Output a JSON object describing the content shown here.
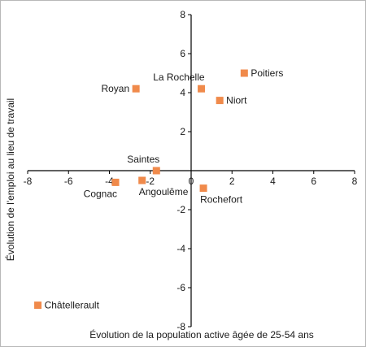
{
  "chart_data": {
    "type": "scatter",
    "xlabel": "Évolution de la population active âgée de 25-54 ans",
    "ylabel": "Évolution de l'emploi au lieu de travail",
    "xlim": [
      -8,
      8
    ],
    "ylim": [
      -8,
      8
    ],
    "x_ticks": [
      -8,
      -6,
      -4,
      -2,
      0,
      2,
      4,
      6,
      8
    ],
    "y_ticks": [
      -8,
      -6,
      -4,
      -2,
      2,
      4,
      6,
      8
    ],
    "grid": false,
    "marker_color": "#f08a4b",
    "points": [
      {
        "label": "Poitiers",
        "x": 2.6,
        "y": 5.0,
        "label_pos": "right"
      },
      {
        "label": "La Rochelle",
        "x": 0.5,
        "y": 4.2,
        "label_pos": "above-left"
      },
      {
        "label": "Royan",
        "x": -2.7,
        "y": 4.2,
        "label_pos": "left"
      },
      {
        "label": "Niort",
        "x": 1.4,
        "y": 3.6,
        "label_pos": "right"
      },
      {
        "label": "Saintes",
        "x": -1.7,
        "y": 0.0,
        "label_pos": "above-left"
      },
      {
        "label": "Angoulême",
        "x": -2.4,
        "y": -0.5,
        "label_pos": "below-right"
      },
      {
        "label": "Cognac",
        "x": -3.7,
        "y": -0.6,
        "label_pos": "below-left"
      },
      {
        "label": "Rochefort",
        "x": 0.6,
        "y": -0.9,
        "label_pos": "below-right"
      },
      {
        "label": "Châtellerault",
        "x": -7.5,
        "y": -6.9,
        "label_pos": "right"
      }
    ]
  }
}
